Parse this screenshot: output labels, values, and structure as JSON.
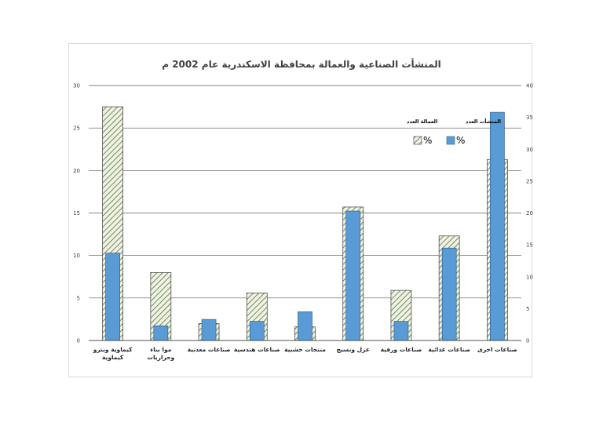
{
  "chart_data": {
    "type": "bar",
    "title": "المنشأت الصناعية والعمالة بمحافظة الاسكندرية عام 2002 م",
    "categories": [
      [
        "كيماوية وبترو",
        "كيماوية"
      ],
      [
        "موا بناء",
        "وحراريات"
      ],
      [
        "صناعات معدنية"
      ],
      [
        "صناعات هندسية"
      ],
      [
        "منتجات خشبية"
      ],
      [
        "غزل ونسيج"
      ],
      [
        "صناعات ورقية"
      ],
      [
        "صناعات غذائية"
      ],
      [
        "صناعات اخرى"
      ]
    ],
    "series": [
      {
        "name": "العمالة العدد",
        "legend_symbol": "%",
        "axis": "left",
        "pattern": "hatched",
        "values": [
          27.5,
          8.0,
          2.0,
          5.6,
          1.6,
          15.7,
          5.9,
          12.3,
          21.3
        ]
      },
      {
        "name": "المنشأت العدد",
        "legend_symbol": "%",
        "axis": "right",
        "color": "#5b9bd5",
        "values": [
          13.7,
          2.3,
          3.3,
          3.0,
          4.5,
          20.3,
          3.0,
          14.5,
          35.8
        ]
      }
    ],
    "yaxis_left": {
      "min": 0,
      "max": 30,
      "ticks": [
        0,
        5,
        10,
        15,
        20,
        25,
        30
      ]
    },
    "yaxis_right": {
      "min": 0,
      "max": 40,
      "ticks": [
        0,
        5,
        10,
        15,
        20,
        25,
        30,
        35,
        40
      ]
    },
    "grid": true,
    "legend_position": "top-right"
  }
}
